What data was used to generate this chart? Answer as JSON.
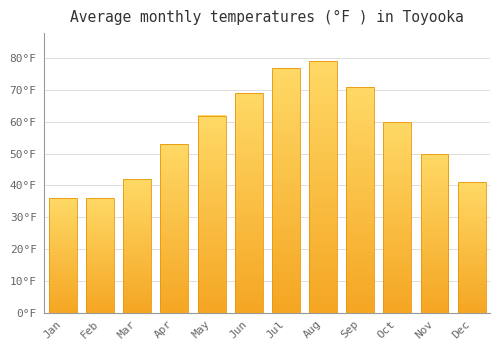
{
  "title": "Average monthly temperatures (°F ) in Toyooka",
  "months": [
    "Jan",
    "Feb",
    "Mar",
    "Apr",
    "May",
    "Jun",
    "Jul",
    "Aug",
    "Sep",
    "Oct",
    "Nov",
    "Dec"
  ],
  "values": [
    36,
    36,
    42,
    53,
    62,
    69,
    77,
    79,
    71,
    60,
    50,
    41
  ],
  "bar_color_bottom": "#F5A623",
  "bar_color_top": "#FFD966",
  "background_color": "#FFFFFF",
  "grid_color": "#DDDDDD",
  "ylim": [
    0,
    88
  ],
  "yticks": [
    0,
    10,
    20,
    30,
    40,
    50,
    60,
    70,
    80
  ],
  "ytick_labels": [
    "0°F",
    "10°F",
    "20°F",
    "30°F",
    "40°F",
    "50°F",
    "60°F",
    "70°F",
    "80°F"
  ],
  "title_fontsize": 10.5,
  "tick_fontsize": 8,
  "title_color": "#333333",
  "tick_color": "#666666",
  "figsize": [
    5.0,
    3.5
  ],
  "dpi": 100
}
